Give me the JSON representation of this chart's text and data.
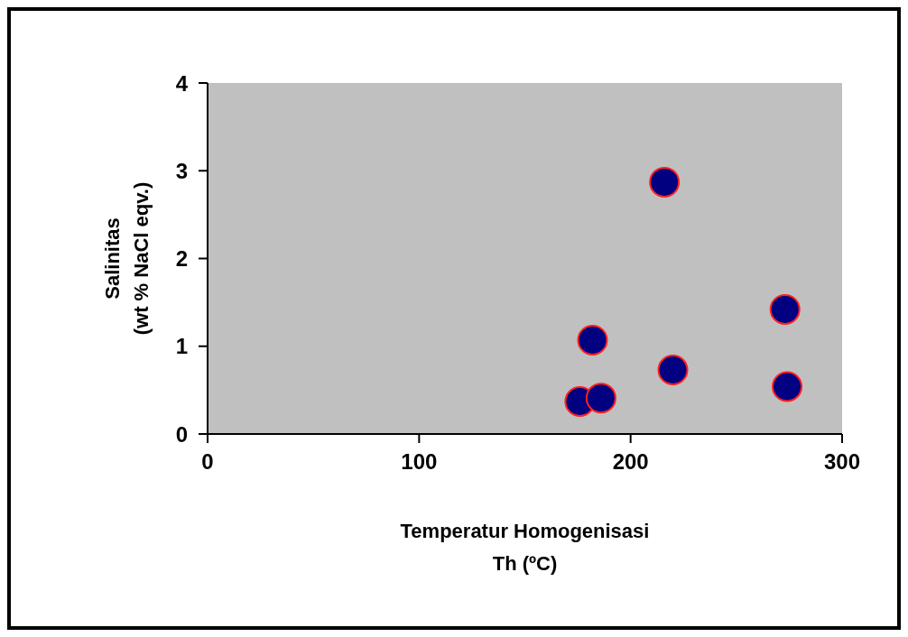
{
  "chart_data": {
    "type": "scatter",
    "xlabel": "Temperatur Homogenisasi\nTh (ºC)",
    "ylabel": "Salinitas\n(wt % NaCl eqv.)",
    "x": [
      176,
      186,
      182,
      216,
      220,
      273,
      274
    ],
    "values": [
      0.37,
      0.41,
      1.07,
      2.87,
      0.73,
      1.42,
      0.54
    ],
    "color": "#000080",
    "marker": "circle",
    "grid": false,
    "xlim": [
      0,
      300
    ],
    "xticks": [
      0,
      100,
      200,
      300
    ],
    "ylim": [
      0,
      4
    ],
    "yticks": [
      0,
      1,
      2,
      3,
      4
    ]
  }
}
